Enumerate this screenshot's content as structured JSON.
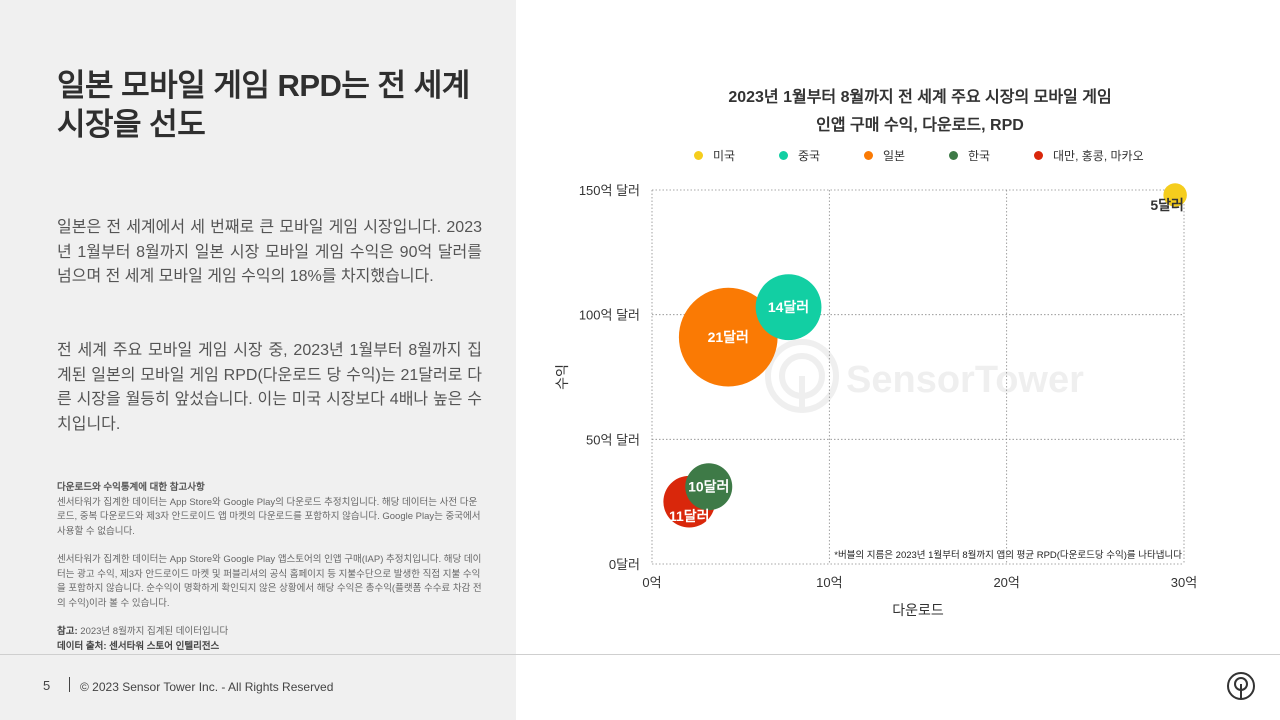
{
  "slide": {
    "title_line1": "일본 모바일 게임 RPD는 전 세계",
    "title_line2": "시장을 선도",
    "paragraph1": "일본은 전 세계에서 세 번째로 큰 모바일 게임 시장입니다. 2023년 1월부터 8월까지 일본 시장 모바일 게임 수익은 90억 달러를 넘으며 전 세계 모바일 게임 수익의 18%를 차지했습니다.",
    "paragraph2": "전 세계 주요 모바일 게임 시장 중, 2023년 1월부터 8월까지 집계된 일본의 모바일 게임 RPD(다운로드 당 수익)는 21달러로 다른 시장을 월등히 앞섰습니다. 이는 미국 시장보다 4배나 높은 수치입니다."
  },
  "notes": {
    "heading": "다운로드와 수익통계에 대한 참고사항",
    "download_note": "센서타워가 집계한 데이터는 App Store와 Google Play의 다운로드 추정치입니다. 해당 데이터는 사전 다운로드, 중복 다운로드와 제3자 안드로이드 앱 마켓의 다운로드를 포함하지 않습니다. Google Play는 중국에서 사용할 수 없습니다.",
    "revenue_note": "센서타워가 집계한 데이터는 App Store와 Google Play 앱스토어의 인앱 구매(IAP) 추정치입니다. 해당 데이터는 광고 수익, 제3자 안드로이드 마켓 및 퍼블리셔의 공식 홈페이지 등 지불수단으로 발생한 직접 지불 수익을 포함하지 않습니다. 순수익이 명확하게 확인되지 않은 상황에서 해당 수익은 총수익(플랫폼 수수료 차감 전의 수익)이라 볼 수 있습니다.",
    "reference_label": "참고:",
    "reference_text": " 2023년 8월까지 집계된 데이터입니다",
    "source": "데이터 출처: 센서타워 스토어 인텔리전스"
  },
  "footer": {
    "page_number": "5",
    "copyright": "© 2023 Sensor Tower Inc. - All Rights Reserved"
  },
  "watermark": "SensorTower",
  "chart_data": {
    "type": "scatter",
    "title_line1": "2023년 1월부터 8월까지 전 세계 주요 시장의 모바일 게임",
    "title_line2": "인앱 구매 수익, 다운로드, RPD",
    "xlabel": "다운로드",
    "ylabel": "수익",
    "xlim": [
      0,
      30
    ],
    "ylim": [
      0,
      150
    ],
    "xticks": [
      {
        "value": 0,
        "label": "0억"
      },
      {
        "value": 10,
        "label": "10억"
      },
      {
        "value": 20,
        "label": "20억"
      },
      {
        "value": 30,
        "label": "30억"
      }
    ],
    "yticks": [
      {
        "value": 0,
        "label": "0달러"
      },
      {
        "value": 50,
        "label": "50억 달러"
      },
      {
        "value": 100,
        "label": "100억 달러"
      },
      {
        "value": 150,
        "label": "150억 달러"
      }
    ],
    "grid": true,
    "footnote": "*버블의 지름은 2023년 1월부터 8월까지 앱의 평균 RPD(다운로드당 수익)를 나타냅니다",
    "series": [
      {
        "name": "미국",
        "color": "#f5cd1d",
        "x": 29.5,
        "y": 148,
        "rpd": 5,
        "label": "5달러",
        "label_position": "below-left",
        "label_color": "#333333"
      },
      {
        "name": "중국",
        "color": "#12cfa3",
        "x": 7.7,
        "y": 103,
        "rpd": 14,
        "label": "14달러",
        "label_position": "center",
        "label_color": "#ffffff"
      },
      {
        "name": "일본",
        "color": "#fa7a04",
        "x": 4.3,
        "y": 91,
        "rpd": 21,
        "label": "21달러",
        "label_position": "center",
        "label_color": "#ffffff"
      },
      {
        "name": "한국",
        "color": "#3e7a47",
        "x": 3.2,
        "y": 31,
        "rpd": 10,
        "label": "10달러",
        "label_position": "center",
        "label_color": "#ffffff"
      },
      {
        "name": "대만, 홍콩, 마카오",
        "color": "#d9270b",
        "x": 2.1,
        "y": 25,
        "rpd": 11,
        "label": "11달러",
        "label_position": "below",
        "label_color": "#ffffff"
      }
    ]
  }
}
